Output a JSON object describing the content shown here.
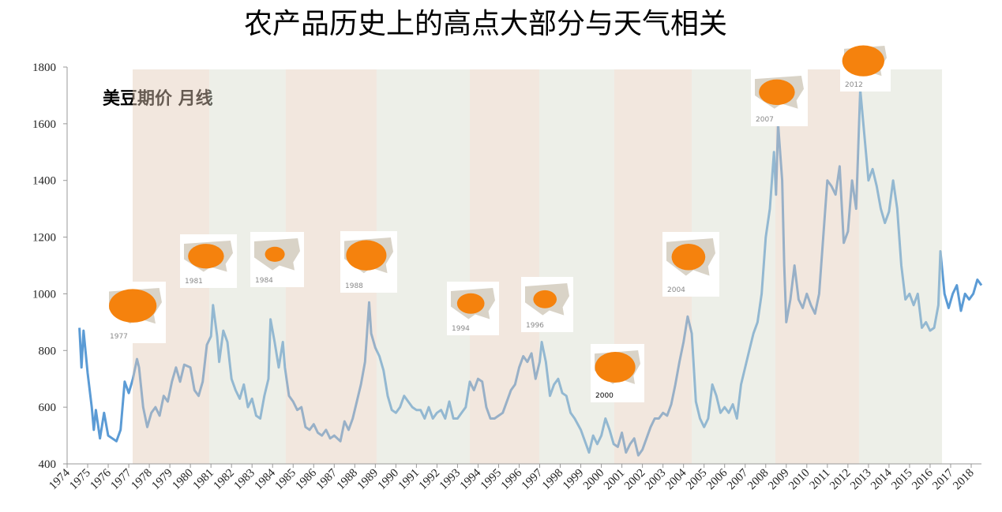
{
  "chart_data": {
    "type": "line",
    "title": "农产品历史上的高点大部分与天气相关",
    "subtitle": "美豆期价  月线",
    "color": "#5b9bd5",
    "xlim": [
      1974,
      2018.5
    ],
    "ylim": [
      400,
      1800
    ],
    "yticks": [
      400,
      600,
      800,
      1000,
      1200,
      1400,
      1600,
      1800
    ],
    "xticks": [
      1974,
      1975,
      1976,
      1977,
      1978,
      1979,
      1980,
      1981,
      1982,
      1983,
      1984,
      1985,
      1986,
      1987,
      1988,
      1989,
      1990,
      1991,
      1992,
      1993,
      1994,
      1995,
      1996,
      1997,
      1998,
      1999,
      2000,
      2001,
      2002,
      2003,
      2004,
      2005,
      2006,
      2007,
      2008,
      2009,
      2010,
      2011,
      2012,
      2013,
      2014,
      2015,
      2016,
      2017,
      2018
    ],
    "bands": [
      {
        "start": 1977.19,
        "end": 1980.92,
        "color": "#e2c9b5"
      },
      {
        "start": 1980.92,
        "end": 1984.64,
        "color": "#d6dbcb"
      },
      {
        "start": 1984.64,
        "end": 1989.06,
        "color": "#e2c9b5"
      },
      {
        "start": 1989.06,
        "end": 1993.6,
        "color": "#d6dbcb"
      },
      {
        "start": 1993.6,
        "end": 1996.98,
        "color": "#e2c9b5"
      },
      {
        "start": 1996.98,
        "end": 2000.63,
        "color": "#d6dbcb"
      },
      {
        "start": 2000.63,
        "end": 2004.4,
        "color": "#e2c9b5"
      },
      {
        "start": 2004.4,
        "end": 2008.47,
        "color": "#d6dbcb"
      },
      {
        "start": 2008.47,
        "end": 2012.54,
        "color": "#e2c9b5"
      },
      {
        "start": 2012.54,
        "end": 2016.58,
        "color": "#d6dbcb"
      }
    ],
    "map_labels": [
      "1977",
      "1981",
      "1984",
      "1988",
      "1994",
      "1996",
      "2000",
      "2004",
      "2007",
      "2012"
    ],
    "x": [
      1974.6,
      1974.7,
      1974.8,
      1975.0,
      1975.2,
      1975.3,
      1975.4,
      1975.6,
      1975.8,
      1976.0,
      1976.2,
      1976.4,
      1976.6,
      1976.8,
      1977.0,
      1977.2,
      1977.4,
      1977.5,
      1977.7,
      1977.9,
      1978.1,
      1978.3,
      1978.5,
      1978.7,
      1978.9,
      1979.1,
      1979.3,
      1979.5,
      1979.7,
      1980.0,
      1980.2,
      1980.4,
      1980.6,
      1980.8,
      1981.0,
      1981.1,
      1981.3,
      1981.4,
      1981.6,
      1981.8,
      1982.0,
      1982.2,
      1982.4,
      1982.6,
      1982.8,
      1983.0,
      1983.2,
      1983.4,
      1983.6,
      1983.8,
      1983.9,
      1984.1,
      1984.3,
      1984.5,
      1984.6,
      1984.8,
      1985.0,
      1985.2,
      1985.4,
      1985.6,
      1985.8,
      1986.0,
      1986.2,
      1986.4,
      1986.6,
      1986.8,
      1987.0,
      1987.3,
      1987.5,
      1987.7,
      1987.9,
      1988.1,
      1988.3,
      1988.5,
      1988.7,
      1988.8,
      1989.0,
      1989.2,
      1989.4,
      1989.6,
      1989.8,
      1990.0,
      1990.2,
      1990.4,
      1990.6,
      1990.8,
      1991.0,
      1991.2,
      1991.4,
      1991.6,
      1991.8,
      1992.0,
      1992.2,
      1992.4,
      1992.6,
      1992.8,
      1993.0,
      1993.2,
      1993.4,
      1993.6,
      1993.8,
      1994.0,
      1994.2,
      1994.4,
      1994.6,
      1994.8,
      1995.0,
      1995.2,
      1995.4,
      1995.6,
      1995.8,
      1996.0,
      1996.2,
      1996.4,
      1996.6,
      1996.8,
      1997.0,
      1997.1,
      1997.3,
      1997.5,
      1997.7,
      1997.9,
      1998.1,
      1998.3,
      1998.5,
      1998.7,
      1999.0,
      1999.2,
      1999.4,
      1999.6,
      1999.8,
      2000.0,
      2000.2,
      2000.4,
      2000.6,
      2000.8,
      2001.0,
      2001.2,
      2001.4,
      2001.6,
      2001.8,
      2002.0,
      2002.2,
      2002.4,
      2002.6,
      2002.8,
      2003.0,
      2003.2,
      2003.4,
      2003.6,
      2003.8,
      2004.0,
      2004.2,
      2004.4,
      2004.6,
      2004.8,
      2005.0,
      2005.2,
      2005.4,
      2005.6,
      2005.8,
      2006.0,
      2006.2,
      2006.4,
      2006.6,
      2006.8,
      2007.0,
      2007.2,
      2007.4,
      2007.6,
      2007.8,
      2008.0,
      2008.2,
      2008.4,
      2008.5,
      2008.6,
      2008.8,
      2008.9,
      2009.0,
      2009.2,
      2009.4,
      2009.6,
      2009.8,
      2010.0,
      2010.2,
      2010.4,
      2010.6,
      2010.8,
      2011.0,
      2011.2,
      2011.4,
      2011.6,
      2011.8,
      2012.0,
      2012.2,
      2012.4,
      2012.6,
      2012.8,
      2013.0,
      2013.2,
      2013.4,
      2013.6,
      2013.8,
      2014.0,
      2014.2,
      2014.4,
      2014.6,
      2014.8,
      2015.0,
      2015.2,
      2015.4,
      2015.6,
      2015.8,
      2016.0,
      2016.2,
      2016.4,
      2016.5,
      2016.7,
      2016.9,
      2017.1,
      2017.3,
      2017.5,
      2017.7,
      2017.9,
      2018.1,
      2018.3,
      2018.5
    ],
    "values": [
      880,
      740,
      870,
      720,
      600,
      520,
      590,
      490,
      580,
      500,
      490,
      480,
      520,
      690,
      650,
      700,
      770,
      740,
      600,
      530,
      580,
      600,
      570,
      640,
      620,
      690,
      740,
      690,
      750,
      740,
      660,
      640,
      690,
      820,
      850,
      960,
      850,
      760,
      870,
      830,
      700,
      660,
      630,
      680,
      600,
      630,
      570,
      560,
      640,
      700,
      910,
      830,
      740,
      830,
      740,
      640,
      620,
      590,
      600,
      530,
      520,
      540,
      510,
      500,
      520,
      490,
      500,
      480,
      550,
      520,
      560,
      620,
      680,
      760,
      970,
      860,
      810,
      780,
      730,
      640,
      590,
      580,
      600,
      640,
      620,
      600,
      590,
      590,
      560,
      600,
      560,
      580,
      590,
      560,
      620,
      560,
      560,
      580,
      600,
      690,
      660,
      700,
      690,
      600,
      560,
      560,
      570,
      580,
      620,
      660,
      680,
      740,
      780,
      760,
      790,
      700,
      760,
      830,
      760,
      640,
      680,
      700,
      650,
      640,
      580,
      560,
      520,
      480,
      440,
      500,
      470,
      500,
      560,
      520,
      470,
      460,
      510,
      440,
      470,
      490,
      430,
      450,
      490,
      530,
      560,
      560,
      580,
      570,
      610,
      680,
      760,
      830,
      920,
      860,
      620,
      560,
      530,
      560,
      680,
      640,
      580,
      600,
      580,
      610,
      560,
      680,
      740,
      800,
      860,
      900,
      1000,
      1200,
      1300,
      1500,
      1350,
      1600,
      1400,
      1100,
      900,
      980,
      1100,
      980,
      950,
      1000,
      960,
      930,
      1000,
      1200,
      1400,
      1380,
      1350,
      1450,
      1180,
      1220,
      1400,
      1300,
      1720,
      1560,
      1400,
      1440,
      1380,
      1300,
      1250,
      1290,
      1400,
      1300,
      1100,
      980,
      1000,
      960,
      1000,
      880,
      900,
      870,
      880,
      960,
      1150,
      1000,
      950,
      1000,
      1030,
      940,
      1000,
      980,
      1000,
      1050,
      1030
    ]
  }
}
